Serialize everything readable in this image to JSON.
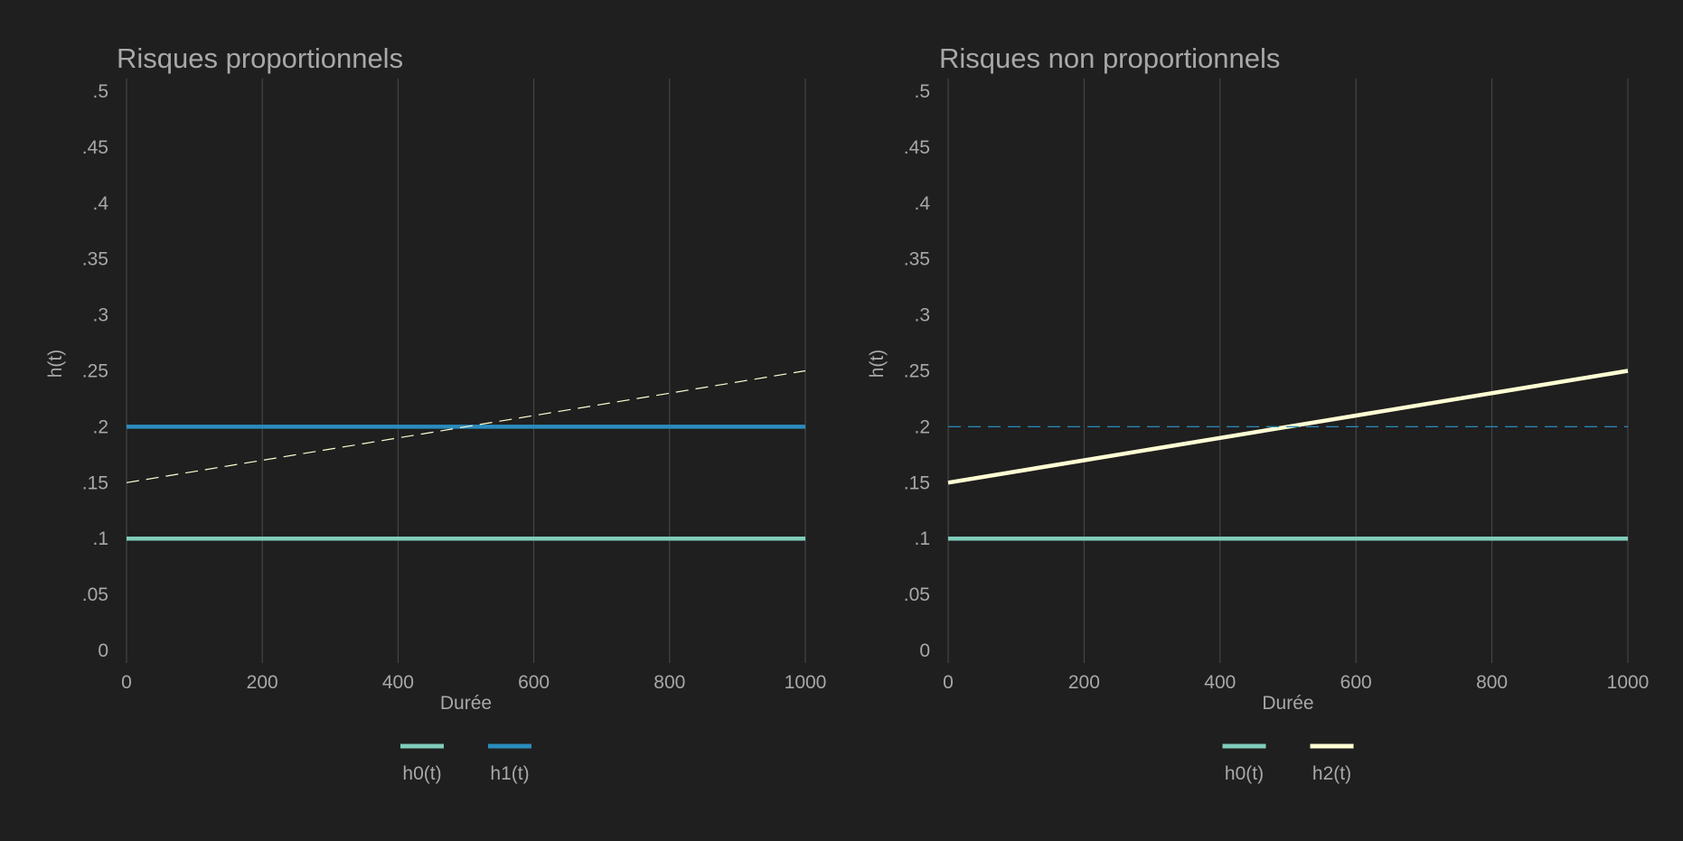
{
  "colors": {
    "background": "#1f1f1f",
    "text": "#a8a8a8",
    "grid": "#4b4b4b",
    "h0": "#7fcdbb",
    "h1": "#2b8cbe",
    "h2": "#ffffd4"
  },
  "chart_data": [
    {
      "type": "line",
      "title": "Risques proportionnels",
      "xlabel": "Durée",
      "ylabel": "h(t)",
      "xlim": [
        0,
        1000
      ],
      "ylim": [
        0,
        0.5
      ],
      "xticks": [
        0,
        200,
        400,
        600,
        800,
        1000
      ],
      "xtick_labels": [
        "0",
        "200",
        "400",
        "600",
        "800",
        "1000"
      ],
      "yticks": [
        0,
        0.05,
        0.1,
        0.15,
        0.2,
        0.25,
        0.3,
        0.35,
        0.4,
        0.45,
        0.5
      ],
      "ytick_labels": [
        "0",
        ".05",
        ".1",
        ".15",
        ".2",
        ".25",
        ".3",
        ".35",
        ".4",
        ".45",
        ".5"
      ],
      "grid": "vertical",
      "legend_position": "bottom",
      "series": [
        {
          "name": "h0(t)",
          "color": "#7fcdbb",
          "style": "solid",
          "x": [
            0,
            1000
          ],
          "y": [
            0.1,
            0.1
          ],
          "in_legend": true
        },
        {
          "name": "h1(t)",
          "color": "#2b8cbe",
          "style": "solid",
          "x": [
            0,
            1000
          ],
          "y": [
            0.2,
            0.2
          ],
          "in_legend": true
        },
        {
          "color": "#ffffd4",
          "style": "dashed",
          "x": [
            0,
            1000
          ],
          "y": [
            0.15,
            0.25
          ],
          "in_legend": false
        }
      ]
    },
    {
      "type": "line",
      "title": "Risques non proportionnels",
      "xlabel": "Durée",
      "ylabel": "h(t)",
      "xlim": [
        0,
        1000
      ],
      "ylim": [
        0,
        0.5
      ],
      "xticks": [
        0,
        200,
        400,
        600,
        800,
        1000
      ],
      "xtick_labels": [
        "0",
        "200",
        "400",
        "600",
        "800",
        "1000"
      ],
      "yticks": [
        0,
        0.05,
        0.1,
        0.15,
        0.2,
        0.25,
        0.3,
        0.35,
        0.4,
        0.45,
        0.5
      ],
      "ytick_labels": [
        "0",
        ".05",
        ".1",
        ".15",
        ".2",
        ".25",
        ".3",
        ".35",
        ".4",
        ".45",
        ".5"
      ],
      "grid": "vertical",
      "legend_position": "bottom",
      "series": [
        {
          "name": "h0(t)",
          "color": "#7fcdbb",
          "style": "solid",
          "x": [
            0,
            1000
          ],
          "y": [
            0.1,
            0.1
          ],
          "in_legend": true
        },
        {
          "name": "h2(t)",
          "color": "#ffffd4",
          "style": "solid",
          "x": [
            0,
            1000
          ],
          "y": [
            0.15,
            0.25
          ],
          "in_legend": true
        },
        {
          "color": "#2b8cbe",
          "style": "dashed",
          "x": [
            0,
            1000
          ],
          "y": [
            0.2,
            0.2
          ],
          "in_legend": false
        }
      ]
    }
  ]
}
